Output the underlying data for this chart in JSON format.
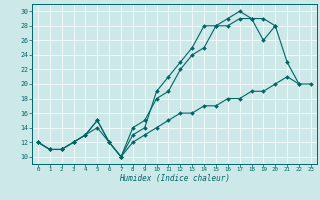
{
  "xlabel": "Humidex (Indice chaleur)",
  "bg_color": "#cce8e8",
  "line_color": "#006666",
  "grid_color": "#ffffff",
  "xlim": [
    -0.5,
    23.5
  ],
  "ylim": [
    9.0,
    31.0
  ],
  "xticks": [
    0,
    1,
    2,
    3,
    4,
    5,
    6,
    7,
    8,
    9,
    10,
    11,
    12,
    13,
    14,
    15,
    16,
    17,
    18,
    19,
    20,
    21,
    22,
    23
  ],
  "yticks": [
    10,
    12,
    14,
    16,
    18,
    20,
    22,
    24,
    26,
    28,
    30
  ],
  "line1_x": [
    0,
    1,
    2,
    3,
    4,
    5,
    6,
    7,
    8,
    9,
    10,
    11,
    12,
    13,
    14,
    15,
    16,
    17,
    18,
    19,
    20,
    21,
    22
  ],
  "line1_y": [
    12,
    11,
    11,
    12,
    13,
    15,
    12,
    10,
    13,
    14,
    19,
    21,
    23,
    25,
    28,
    28,
    29,
    30,
    29,
    29,
    28,
    23,
    20
  ],
  "line2_x": [
    0,
    1,
    2,
    3,
    4,
    5,
    6,
    7,
    8,
    9,
    10,
    11,
    12,
    13,
    14,
    15,
    16,
    17,
    18,
    19,
    20
  ],
  "line2_y": [
    12,
    11,
    11,
    12,
    13,
    15,
    12,
    10,
    14,
    15,
    18,
    19,
    22,
    24,
    25,
    28,
    28,
    29,
    29,
    26,
    28
  ],
  "line3_x": [
    0,
    1,
    2,
    3,
    4,
    5,
    6,
    7,
    8,
    9,
    10,
    11,
    12,
    13,
    14,
    15,
    16,
    17,
    18,
    19,
    20,
    21,
    22,
    23
  ],
  "line3_y": [
    12,
    11,
    11,
    12,
    13,
    14,
    12,
    10,
    12,
    13,
    14,
    15,
    16,
    16,
    17,
    17,
    18,
    18,
    19,
    19,
    20,
    21,
    20,
    20
  ]
}
